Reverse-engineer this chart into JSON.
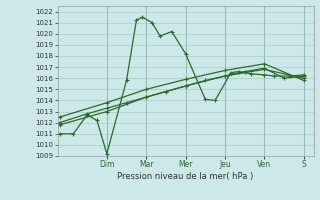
{
  "xlabel": "Pression niveau de la mer( hPa )",
  "ylim": [
    1009,
    1022.5
  ],
  "xlim": [
    0,
    13
  ],
  "bg_color": "#cce8e8",
  "grid_color": "#aacccc",
  "grid_color_major": "#99bbbb",
  "line_color": "#2d6a2d",
  "day_labels": [
    "Dim",
    "Mar",
    "Mer",
    "Jeu",
    "Ven",
    "S"
  ],
  "day_positions": [
    2.5,
    4.5,
    6.5,
    8.5,
    10.5,
    12.5
  ],
  "yticks": [
    1009,
    1010,
    1011,
    1012,
    1013,
    1014,
    1015,
    1016,
    1017,
    1018,
    1019,
    1020,
    1021,
    1022
  ],
  "series1_x": [
    0.1,
    0.8,
    1.5,
    2.0,
    2.5,
    3.5,
    4.0,
    4.3,
    4.8,
    5.2,
    5.8,
    6.5,
    7.5,
    8.0,
    8.8,
    9.2,
    9.8,
    10.5,
    11.0,
    11.8,
    12.5
  ],
  "series1_y": [
    1011.0,
    1011.0,
    1012.7,
    1012.2,
    1009.2,
    1015.8,
    1021.2,
    1021.5,
    1021.0,
    1019.8,
    1020.2,
    1018.2,
    1014.1,
    1014.0,
    1016.5,
    1016.6,
    1016.4,
    1016.3,
    1016.2,
    1016.2,
    1016.3
  ],
  "series2_x": [
    0.1,
    1.5,
    2.5,
    3.5,
    4.5,
    5.5,
    6.5,
    7.5,
    8.5,
    9.5,
    10.5,
    11.5,
    12.5
  ],
  "series2_y": [
    1012.0,
    1012.8,
    1013.3,
    1013.8,
    1014.3,
    1014.8,
    1015.3,
    1015.8,
    1016.2,
    1016.6,
    1016.9,
    1016.0,
    1016.2
  ],
  "series3_x": [
    0.1,
    2.5,
    4.5,
    6.5,
    8.5,
    10.5,
    12.5
  ],
  "series3_y": [
    1011.8,
    1013.0,
    1014.3,
    1015.3,
    1016.2,
    1016.8,
    1016.0
  ],
  "series4_x": [
    0.1,
    2.5,
    4.5,
    6.5,
    8.5,
    10.5,
    12.5
  ],
  "series4_y": [
    1012.5,
    1013.8,
    1015.0,
    1015.9,
    1016.7,
    1017.3,
    1015.8
  ]
}
